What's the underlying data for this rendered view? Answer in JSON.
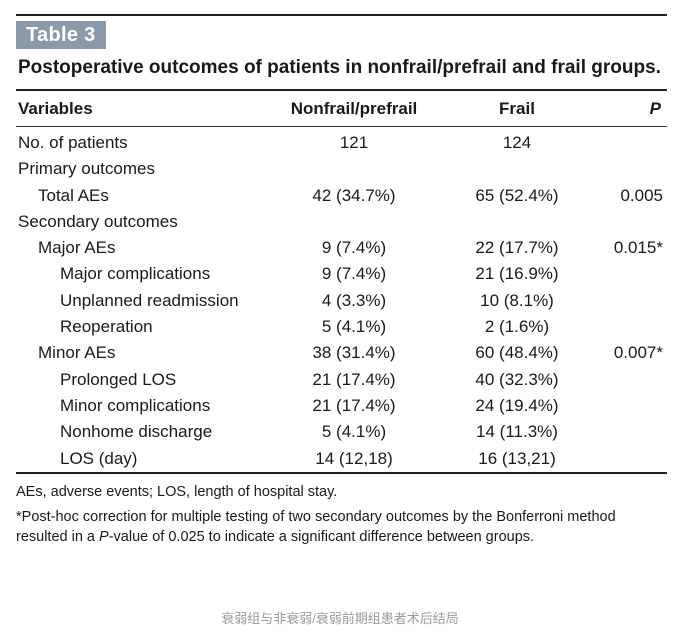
{
  "table_label": "Table 3",
  "title": "Postoperative outcomes of patients in nonfrail/prefrail and frail groups.",
  "columns": [
    "Variables",
    "Nonfrail/prefrail",
    "Frail",
    "P"
  ],
  "rows": [
    {
      "label": "No. of patients",
      "nonfrail": "121",
      "frail": "124",
      "p": ""
    },
    {
      "label": "Primary outcomes",
      "nonfrail": "",
      "frail": "",
      "p": ""
    },
    {
      "label": "Total AEs",
      "nonfrail": "42 (34.7%)",
      "frail": "65 (52.4%)",
      "p": "0.005"
    },
    {
      "label": "Secondary outcomes",
      "nonfrail": "",
      "frail": "",
      "p": ""
    },
    {
      "label": "Major AEs",
      "nonfrail": "9 (7.4%)",
      "frail": "22 (17.7%)",
      "p": "0.015*"
    },
    {
      "label": "Major complications",
      "nonfrail": "9 (7.4%)",
      "frail": "21 (16.9%)",
      "p": ""
    },
    {
      "label": "Unplanned readmission",
      "nonfrail": "4 (3.3%)",
      "frail": "10 (8.1%)",
      "p": ""
    },
    {
      "label": "Reoperation",
      "nonfrail": "5 (4.1%)",
      "frail": "2 (1.6%)",
      "p": ""
    },
    {
      "label": "Minor AEs",
      "nonfrail": "38 (31.4%)",
      "frail": "60 (48.4%)",
      "p": "0.007*"
    },
    {
      "label": "Prolonged LOS",
      "nonfrail": "21 (17.4%)",
      "frail": "40 (32.3%)",
      "p": ""
    },
    {
      "label": "Minor complications",
      "nonfrail": "21 (17.4%)",
      "frail": "24 (19.4%)",
      "p": ""
    },
    {
      "label": "Nonhome discharge",
      "nonfrail": "5 (4.1%)",
      "frail": "14 (11.3%)",
      "p": ""
    },
    {
      "label": "LOS (day)",
      "nonfrail": "14 (12,18)",
      "frail": "16 (13,21)",
      "p": ""
    }
  ],
  "footnotes": {
    "abbreviations": "AEs, adverse events; LOS, length of hospital stay.",
    "correction_pre": "*Post-hoc correction for multiple testing of two secondary outcomes by the Bonferroni method resulted in a ",
    "correction_p": "P",
    "correction_post": "-value of 0.025 to indicate a significant difference between groups."
  },
  "watermark": "衰弱组与非衰弱/衰弱前期组患者术后结局"
}
